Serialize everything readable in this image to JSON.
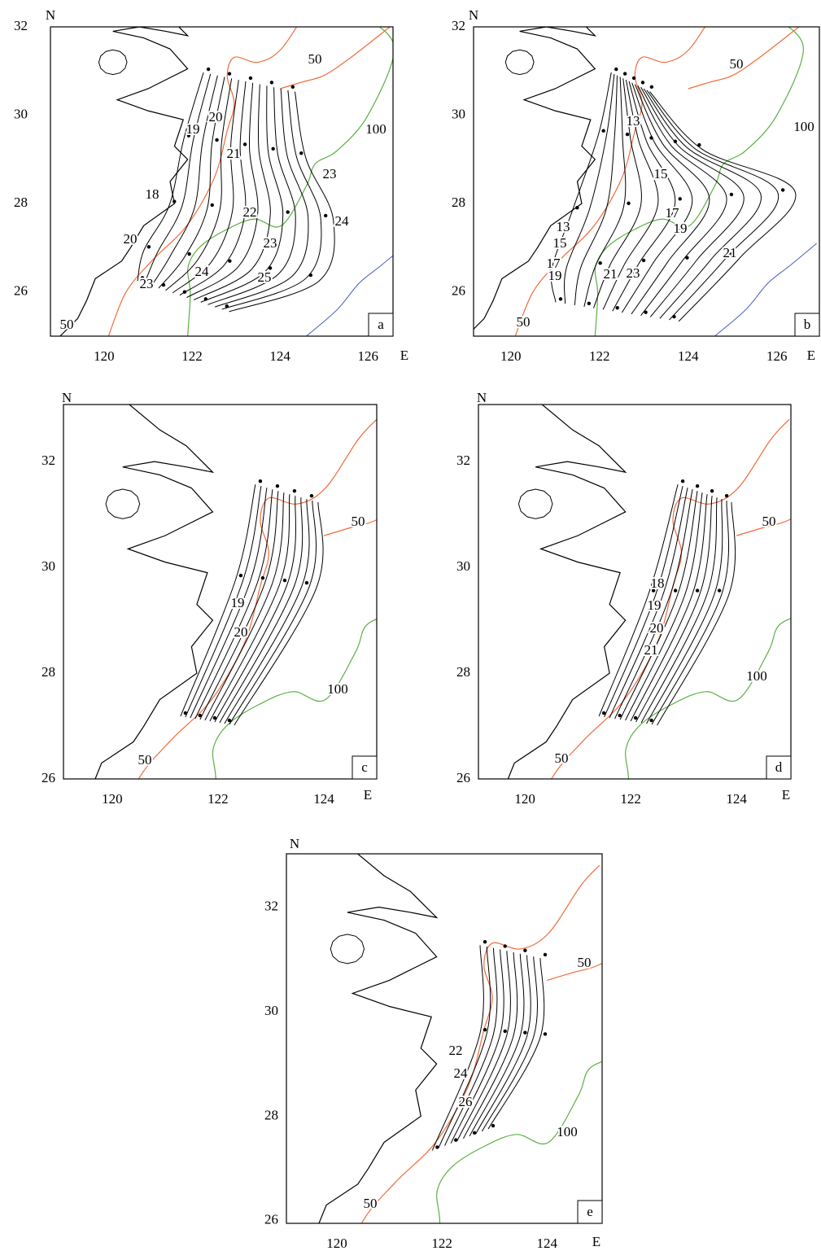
{
  "maps": [
    {
      "panel": "a",
      "north_label": "N",
      "east_label": "E",
      "xticks": [
        120,
        122,
        124,
        126
      ],
      "yticks": [
        26,
        28,
        30,
        32
      ],
      "xlim": [
        118.78,
        126.57
      ],
      "ylim": [
        25,
        32
      ],
      "isobath_labels": [
        "50",
        "100",
        "50"
      ],
      "contour_labels": [
        "19",
        "20",
        "21",
        "22",
        "23",
        "23",
        "24",
        "25",
        "23",
        "24",
        "18",
        "20"
      ]
    },
    {
      "panel": "b",
      "north_label": "N",
      "east_label": "E",
      "xticks": [
        120,
        122,
        124,
        126
      ],
      "yticks": [
        26,
        28,
        30,
        32
      ],
      "xlim": [
        119.16,
        126.96
      ],
      "ylim": [
        25,
        32
      ],
      "isobath_labels": [
        "50",
        "100",
        "50"
      ],
      "contour_labels": [
        "13",
        "15",
        "17",
        "19",
        "21",
        "23",
        "21",
        "17",
        "15",
        "13",
        "19"
      ]
    },
    {
      "panel": "c",
      "north_label": "N",
      "east_label": "E",
      "xticks": [
        120,
        122,
        124
      ],
      "yticks": [
        26,
        28,
        30,
        32
      ],
      "xlim": [
        119.08,
        125.0
      ],
      "ylim": [
        26,
        33.08
      ],
      "isobath_labels": [
        "50",
        "100",
        "50"
      ],
      "contour_labels": [
        "19",
        "20"
      ]
    },
    {
      "panel": "d",
      "north_label": "N",
      "east_label": "E",
      "xticks": [
        120,
        122,
        124
      ],
      "yticks": [
        26,
        28,
        30,
        32
      ],
      "xlim": [
        119.12,
        125.03
      ],
      "ylim": [
        26,
        33.08
      ],
      "isobath_labels": [
        "50",
        "100",
        "50"
      ],
      "contour_labels": [
        "18",
        "19",
        "20",
        "21"
      ]
    },
    {
      "panel": "e",
      "north_label": "N",
      "east_label": "E",
      "xticks": [
        120,
        122,
        124
      ],
      "yticks": [
        26,
        28,
        30,
        32
      ],
      "xlim": [
        119.04,
        125.05
      ],
      "ylim": [
        25.95,
        33.02
      ],
      "isobath_labels": [
        "50",
        "100",
        "50"
      ],
      "contour_labels": [
        "22",
        "24",
        "26"
      ]
    }
  ]
}
